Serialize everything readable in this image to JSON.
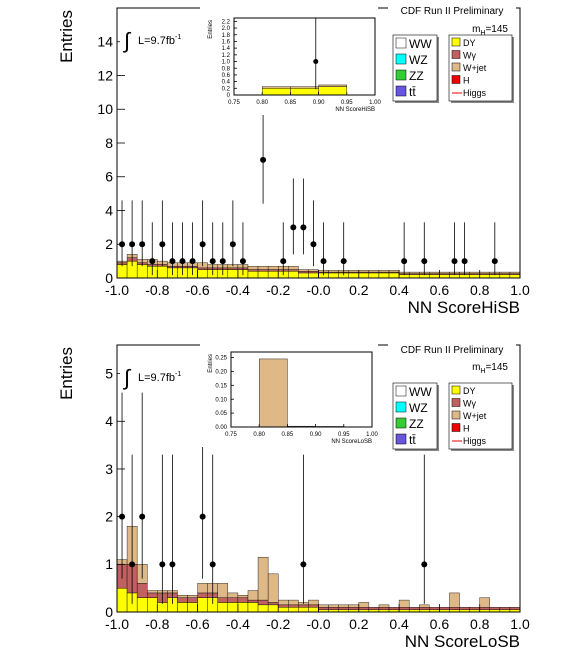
{
  "chart_data": [
    {
      "type": "histogram",
      "experiment": "CDF Run II Preliminary",
      "mass_label": {
        "m": "m",
        "sub": "H",
        "rest": "=145"
      },
      "lumi": {
        "symbol": "∫",
        "text": "L=9.7fb",
        "sup": "-1"
      },
      "x_label": "NN ScoreHiSB",
      "y_label": "Entries",
      "xlim": [
        -1,
        1
      ],
      "ylim": [
        0,
        16
      ],
      "xticks": [
        {
          "value": -1,
          "label": "-1.0"
        },
        -0.8,
        -0.6,
        -0.4,
        -0.2,
        {
          "value": 0,
          "label": "-0.0"
        },
        0.2,
        0.4,
        0.6,
        0.8,
        {
          "value": 1,
          "label": "1.0"
        }
      ],
      "yticks": [
        0,
        2,
        4,
        6,
        8,
        10,
        12,
        14
      ],
      "bins": [
        -1,
        -0.95,
        -0.9,
        -0.85,
        -0.8,
        -0.75,
        -0.7,
        -0.65,
        -0.6,
        -0.55,
        -0.5,
        -0.45,
        -0.4,
        -0.35,
        -0.3,
        -0.25,
        -0.2,
        -0.15,
        -0.1,
        -0.05,
        0,
        0.05,
        0.1,
        0.15,
        0.2,
        0.25,
        0.3,
        0.35,
        0.4,
        0.45,
        0.5,
        0.55,
        0.6,
        0.65,
        0.7,
        0.75,
        0.8,
        0.85,
        0.9,
        0.95,
        1
      ],
      "series": [
        {
          "name": "WW",
          "color": "#ffffff"
        },
        {
          "name": "WZ",
          "color": "#00ffff"
        },
        {
          "name": "ZZ",
          "color": "#33cc33"
        },
        {
          "name": "tt̄",
          "color": "#6655dd"
        },
        {
          "name": "DY",
          "color": "#ffff00",
          "values": [
            0.8,
            1.0,
            0.8,
            0.7,
            0.7,
            0.6,
            0.6,
            0.6,
            0.5,
            0.5,
            0.5,
            0.5,
            0.5,
            0.4,
            0.4,
            0.4,
            0.4,
            0.4,
            0.3,
            0.3,
            0.3,
            0.3,
            0.3,
            0.3,
            0.3,
            0.3,
            0.3,
            0.3,
            0.2,
            0.2,
            0.2,
            0.2,
            0.2,
            0.2,
            0.2,
            0.2,
            0.2,
            0.2,
            0.2,
            0.2
          ]
        },
        {
          "name": "Wγ",
          "color": "#c06060",
          "values": [
            0.1,
            0.2,
            0.1,
            0.1,
            0.1,
            0.1,
            0.1,
            0.1,
            0.1,
            0.1,
            0.1,
            0.1,
            0.1,
            0.1,
            0.1,
            0.1,
            0.1,
            0.1,
            0.1,
            0.1,
            0.05,
            0.05,
            0.05,
            0.05,
            0.05,
            0.05,
            0.05,
            0.05,
            0.05,
            0.05,
            0.05,
            0.05,
            0.05,
            0.05,
            0.05,
            0.05,
            0.05,
            0.05,
            0.05,
            0.05
          ]
        },
        {
          "name": "W+jet",
          "color": "#deb887",
          "values": [
            0.1,
            0.2,
            0.2,
            0.3,
            0.2,
            0.2,
            0.2,
            0.2,
            0.3,
            0.2,
            0.2,
            0.2,
            0.2,
            0.2,
            0.2,
            0.2,
            0.2,
            0.2,
            0.1,
            0.1,
            0.1,
            0.1,
            0.1,
            0.1,
            0.1,
            0.1,
            0.1,
            0.1,
            0.1,
            0.1,
            0.1,
            0.1,
            0.1,
            0.1,
            0.1,
            0.1,
            0.1,
            0.1,
            0.1,
            0.1
          ]
        },
        {
          "name": "H",
          "color": "#ee0000"
        },
        {
          "name": "Higgs",
          "color": "#ee0000",
          "style": "line"
        }
      ],
      "data": {
        "x": [
          -0.975,
          -0.925,
          -0.875,
          -0.825,
          -0.775,
          -0.725,
          -0.675,
          -0.625,
          -0.575,
          -0.525,
          -0.475,
          -0.425,
          -0.375,
          -0.275,
          -0.175,
          -0.125,
          -0.075,
          -0.025,
          0.025,
          0.125,
          0.425,
          0.525,
          0.675,
          0.725,
          0.875
        ],
        "values": [
          2,
          2,
          2,
          1,
          2,
          1,
          1,
          1,
          2,
          1,
          1,
          2,
          1,
          7,
          1,
          3,
          3,
          2,
          1,
          1,
          1,
          1,
          1,
          1,
          1
        ],
        "errors_low": [
          1.3,
          1.3,
          1.3,
          0.83,
          1.3,
          0.83,
          0.83,
          0.83,
          1.3,
          0.83,
          0.83,
          1.3,
          0.83,
          2.6,
          0.83,
          1.6,
          1.6,
          1.3,
          0.83,
          0.83,
          0.83,
          0.83,
          0.83,
          0.83,
          0.83
        ],
        "errors_high": [
          2.6,
          2.6,
          2.6,
          2.3,
          2.6,
          2.3,
          2.3,
          2.3,
          2.6,
          2.3,
          2.3,
          2.6,
          2.3,
          3.8,
          2.3,
          2.9,
          2.9,
          2.6,
          2.3,
          2.3,
          2.3,
          2.3,
          2.3,
          2.3,
          2.3
        ]
      },
      "inset": {
        "type": "histogram",
        "x_label": "NN ScoreHiSB",
        "y_label": "Entries",
        "xlim": [
          0.75,
          1
        ],
        "ylim": [
          0,
          2.3
        ],
        "xticks": [
          0.75,
          {
            "value": 0.8,
            "label": "0.80"
          },
          0.85,
          {
            "value": 0.9,
            "label": "0.90"
          },
          0.95,
          {
            "value": 1,
            "label": "1.00"
          }
        ],
        "yticks": [
          0,
          0.2,
          0.4,
          0.6,
          0.8,
          {
            "value": 1,
            "label": "1.0"
          },
          1.2,
          1.4,
          1.6,
          1.8,
          {
            "value": 2,
            "label": "2.0"
          },
          2.2
        ],
        "bins": [
          0.75,
          0.8,
          0.85,
          0.9,
          0.95,
          1
        ],
        "series": [
          {
            "color": "#ffff00",
            "values": [
              0,
              0.2,
              0.2,
              0.25,
              0
            ]
          },
          {
            "color": "#deb887",
            "values": [
              0,
              0.05,
              0.05,
              0.05,
              0
            ]
          }
        ],
        "data": {
          "x": [
            0.895
          ],
          "values": [
            1
          ],
          "errors_low": [
            0.83
          ],
          "errors_high": [
            2.3
          ]
        }
      }
    },
    {
      "type": "histogram",
      "experiment": "CDF Run II Preliminary",
      "mass_label": {
        "m": "m",
        "sub": "H",
        "rest": "=145"
      },
      "lumi": {
        "symbol": "∫",
        "text": "L=9.7fb",
        "sup": "-1"
      },
      "x_label": "NN ScoreLoSB",
      "y_label": "Entries",
      "xlim": [
        -1,
        1
      ],
      "ylim": [
        0,
        5.6
      ],
      "xticks": [
        {
          "value": -1,
          "label": "-1.0"
        },
        -0.8,
        -0.6,
        -0.4,
        -0.2,
        {
          "value": 0,
          "label": "-0.0"
        },
        0.2,
        0.4,
        0.6,
        0.8,
        {
          "value": 1,
          "label": "1.0"
        }
      ],
      "yticks": [
        0,
        1,
        2,
        3,
        4,
        5
      ],
      "bins": [
        -1,
        -0.95,
        -0.9,
        -0.85,
        -0.8,
        -0.75,
        -0.7,
        -0.65,
        -0.6,
        -0.55,
        -0.5,
        -0.45,
        -0.4,
        -0.35,
        -0.3,
        -0.25,
        -0.2,
        -0.15,
        -0.1,
        -0.05,
        0,
        0.05,
        0.1,
        0.15,
        0.2,
        0.25,
        0.3,
        0.35,
        0.4,
        0.45,
        0.5,
        0.55,
        0.6,
        0.65,
        0.7,
        0.75,
        0.8,
        0.85,
        0.9,
        0.95,
        1
      ],
      "series": [
        {
          "name": "WW",
          "color": "#ffffff"
        },
        {
          "name": "WZ",
          "color": "#00ffff"
        },
        {
          "name": "ZZ",
          "color": "#33cc33"
        },
        {
          "name": "tt̄",
          "color": "#6655dd"
        },
        {
          "name": "DY",
          "color": "#ffff00",
          "values": [
            0.5,
            0.4,
            0.3,
            0.3,
            0.2,
            0.3,
            0.2,
            0.2,
            0.3,
            0.3,
            0.2,
            0.2,
            0.2,
            0.2,
            0.15,
            0.15,
            0.1,
            0.1,
            0.1,
            0.1,
            0.05,
            0.05,
            0.05,
            0.05,
            0.05,
            0.05,
            0.05,
            0.05,
            0.05,
            0.05,
            0.05,
            0.05,
            0.05,
            0.05,
            0.05,
            0.05,
            0.05,
            0.05,
            0.05,
            0.05
          ]
        },
        {
          "name": "Wγ",
          "color": "#c06060",
          "values": [
            0.5,
            0.6,
            0.3,
            0.1,
            0.2,
            0.1,
            0.1,
            0.1,
            0.1,
            0.1,
            0.1,
            0.1,
            0.1,
            0.05,
            0.1,
            0.05,
            0.05,
            0.05,
            0.05,
            0.05,
            0.05,
            0.05,
            0.05,
            0.05,
            0.05,
            0.05,
            0.05,
            0.05,
            0.05,
            0.05,
            0.05,
            0.05,
            0.05,
            0.05,
            0.05,
            0.05,
            0.05,
            0.05,
            0.05,
            0.05
          ]
        },
        {
          "name": "W+jet",
          "color": "#deb887",
          "values": [
            0.1,
            0.8,
            0.4,
            0.05,
            0.05,
            0.05,
            0.05,
            0.05,
            0.2,
            0.2,
            0.3,
            0.1,
            0.05,
            0.2,
            0.9,
            0.6,
            0.1,
            0.1,
            0.05,
            0.1,
            0.05,
            0.05,
            0.05,
            0.05,
            0.1,
            0,
            0.05,
            0,
            0.15,
            0,
            0.05,
            0,
            0,
            0.3,
            0,
            0,
            0.2,
            0,
            0,
            0
          ]
        },
        {
          "name": "H",
          "color": "#ee0000"
        },
        {
          "name": "Higgs",
          "color": "#ee0000",
          "style": "line"
        }
      ],
      "data": {
        "x": [
          -0.975,
          -0.925,
          -0.875,
          -0.775,
          -0.725,
          -0.575,
          -0.525,
          -0.075,
          0.525
        ],
        "values": [
          2,
          1,
          2,
          1,
          1,
          2,
          1,
          1,
          1
        ],
        "errors_low": [
          1.3,
          0.83,
          1.3,
          0.83,
          0.83,
          1.3,
          0.83,
          0.83,
          0.83
        ],
        "errors_high": [
          2.6,
          2.3,
          2.6,
          2.3,
          2.3,
          2.6,
          2.3,
          2.3,
          2.3
        ]
      },
      "inset": {
        "type": "histogram",
        "x_label": "NN ScoreLoSB",
        "y_label": "Entries",
        "xlim": [
          0.75,
          1
        ],
        "ylim": [
          0,
          0.27
        ],
        "xticks": [
          0.75,
          {
            "value": 0.8,
            "label": "0.80"
          },
          0.85,
          {
            "value": 0.9,
            "label": "0.90"
          },
          0.95,
          {
            "value": 1,
            "label": "1.00"
          }
        ],
        "yticks": [
          {
            "value": 0,
            "label": "0.00"
          },
          0.05,
          {
            "value": 0.1,
            "label": "0.10"
          },
          0.15,
          {
            "value": 0.2,
            "label": "0.20"
          },
          0.25
        ],
        "bins": [
          0.75,
          0.8,
          0.85,
          0.9,
          0.95,
          1
        ],
        "series": [
          {
            "color": "#deb887",
            "values": [
              0,
              0.245,
              0.003,
              0.002,
              0
            ]
          }
        ]
      }
    }
  ]
}
